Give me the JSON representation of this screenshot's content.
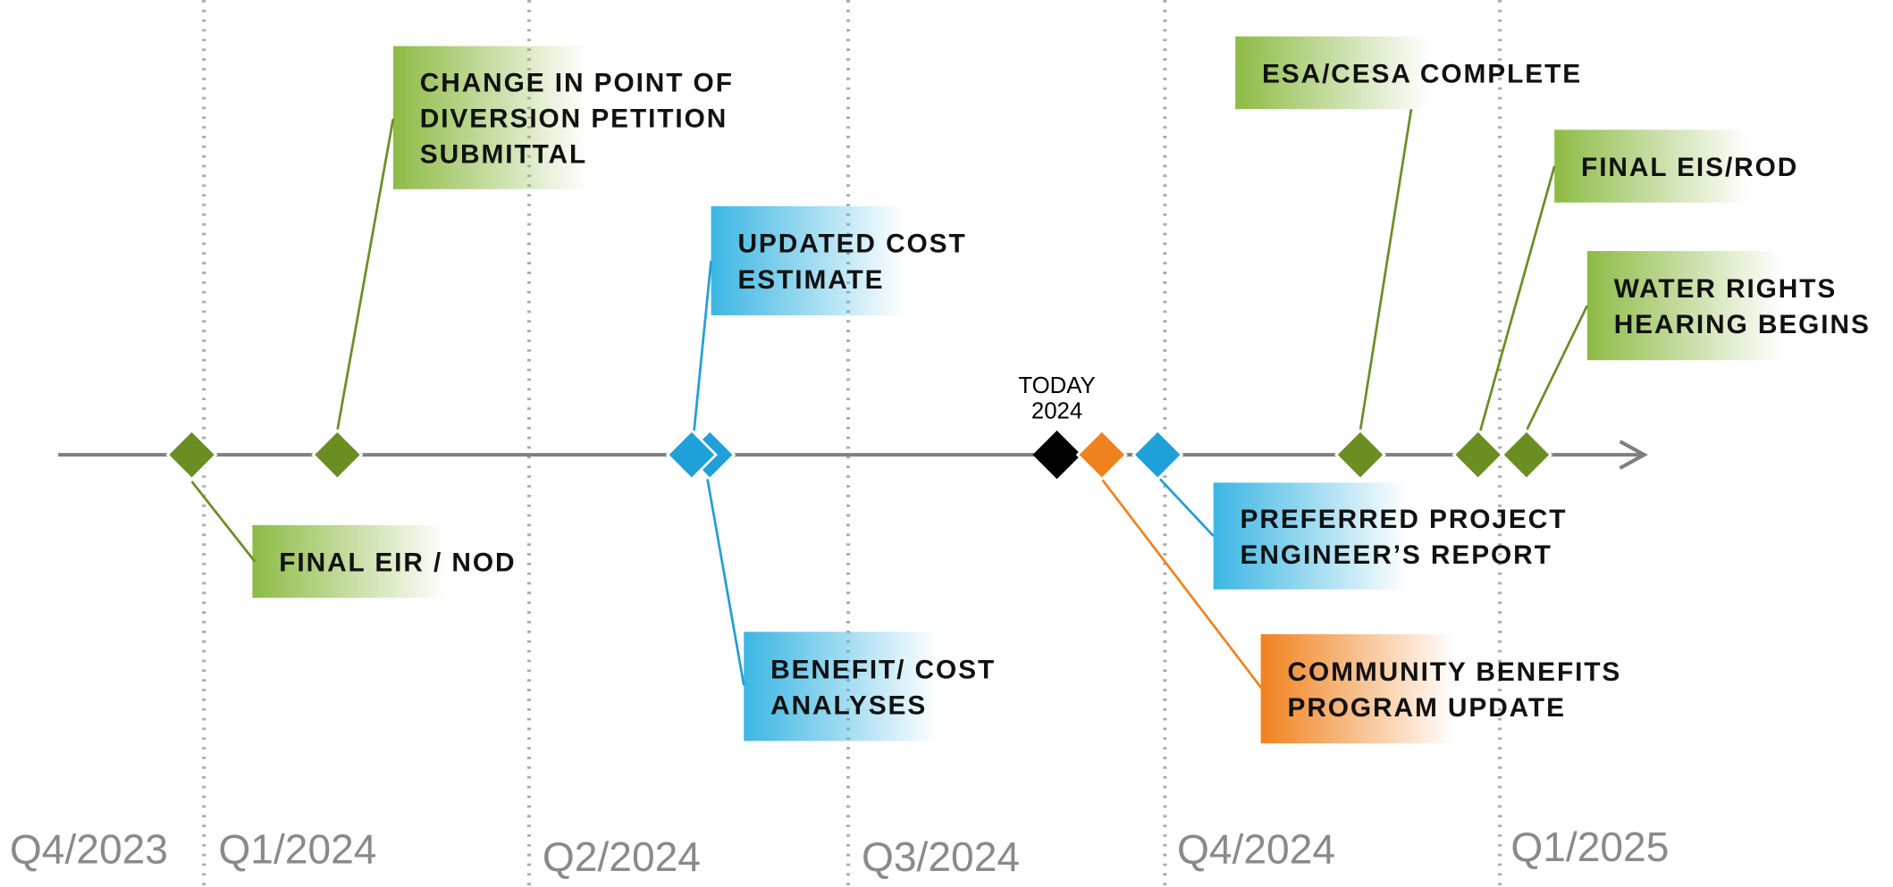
{
  "quarters": [
    "Q4/2023",
    "Q1/2024",
    "Q2/2024",
    "Q3/2024",
    "Q4/2024",
    "Q1/2025"
  ],
  "today": {
    "label": "TODAY",
    "year": "2024"
  },
  "milestones": [
    {
      "lines": [
        "CHANGE IN POINT OF",
        "DIVERSION PETITION",
        "SUBMITTAL"
      ]
    },
    {
      "lines": [
        "FINAL EIR / NOD"
      ]
    },
    {
      "lines": [
        "UPDATED COST",
        "ESTIMATE"
      ]
    },
    {
      "lines": [
        "BENEFIT/ COST",
        "ANALYSES"
      ]
    },
    {
      "lines": [
        "PREFERRED PROJECT",
        "ENGINEER’S REPORT"
      ]
    },
    {
      "lines": [
        "COMMUNITY BENEFITS",
        "PROGRAM UPDATE"
      ]
    },
    {
      "lines": [
        "ESA/CESA COMPLETE"
      ]
    },
    {
      "lines": [
        "FINAL EIS/ROD"
      ]
    },
    {
      "lines": [
        "WATER RIGHTS",
        "HEARING BEGINS"
      ]
    }
  ]
}
